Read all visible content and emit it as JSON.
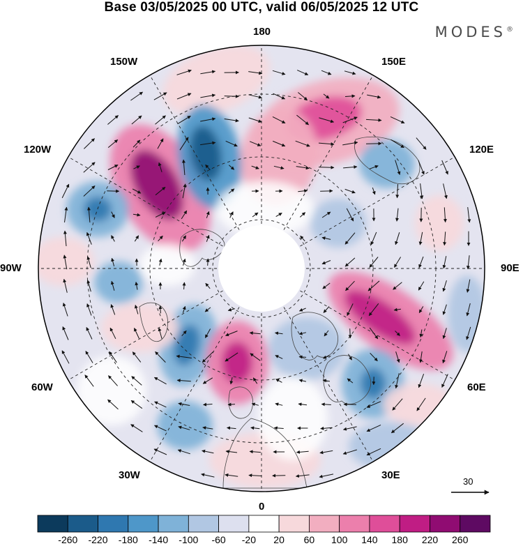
{
  "title": "Base 03/05/2025 00 UTC, valid 06/05/2025 12 UTC",
  "brand": "MODES",
  "brand_mark": "®",
  "longitude_labels": {
    "top": "180",
    "bottom": "0",
    "left": "90W",
    "right": "90E",
    "upper_left_1": "150W",
    "upper_left_2": "120W",
    "upper_right_1": "150E",
    "upper_right_2": "120E",
    "lower_left_1": "60W",
    "lower_left_2": "30W",
    "lower_right_1": "60E",
    "lower_right_2": "30E"
  },
  "wind_reference": {
    "value": "30",
    "icon": "arrow-right-icon"
  },
  "colorbar": {
    "colors": [
      "#0c3a5c",
      "#1b5b8a",
      "#2f78b0",
      "#4e97c9",
      "#7fb2d8",
      "#b1c7e3",
      "#dde0ef",
      "#ffffff",
      "#f7d9dc",
      "#f2aec0",
      "#ec7fac",
      "#df4e99",
      "#c01d84",
      "#900c72",
      "#5e0a62"
    ],
    "tick_labels": [
      "-260",
      "-220",
      "-180",
      "-140",
      "-100",
      "-60",
      "-20",
      "20",
      "60",
      "100",
      "140",
      "180",
      "220",
      "260"
    ]
  },
  "map_style": {
    "projection": "north-polar-stereographic",
    "graticule": "dashed",
    "field": "anomaly-shading-with-wind-vectors"
  }
}
